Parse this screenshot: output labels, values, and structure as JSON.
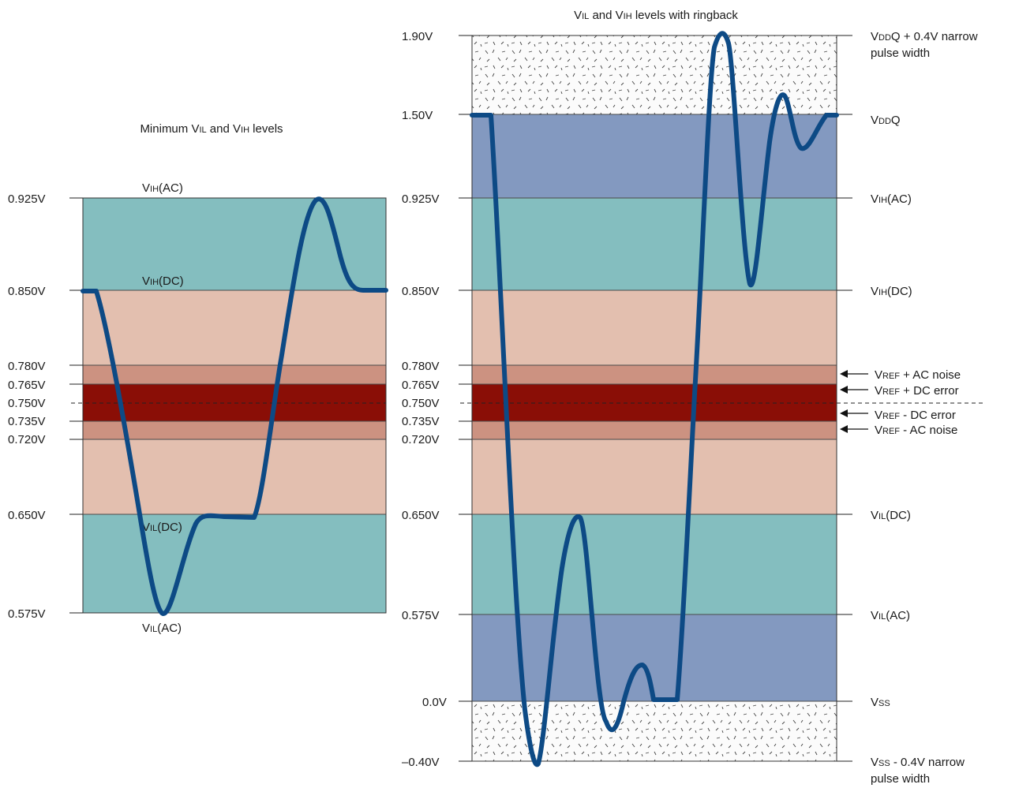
{
  "colors": {
    "teal": "#84bebf",
    "blue": "#8399c0",
    "peach": "#e3bfaf",
    "salmon": "#cc9281",
    "darkred": "#8a0e06",
    "waveform": "#0d4a85",
    "outer_fill": "#f7f7f7"
  },
  "left_panel": {
    "title": {
      "a": "Minimum V",
      "a_sub": "IL",
      "b": " and V",
      "b_sub": "IH",
      "c": " levels"
    },
    "axis_labels": {
      "v0925": "0.925V",
      "v0850": "0.850V",
      "v0780": "0.780V",
      "v0765": "0.765V",
      "v0750": "0.750V",
      "v0735": "0.735V",
      "v0720": "0.720V",
      "v0650": "0.650V",
      "v0575": "0.575V"
    },
    "level_labels": {
      "vih_ac": {
        "main": "V",
        "sub": "IH",
        "paren": "(AC)"
      },
      "vih_dc": {
        "main": "V",
        "sub": "IH",
        "paren": "(DC)"
      },
      "vil_dc": {
        "main": "V",
        "sub": "IL",
        "paren": "(DC)"
      },
      "vil_ac": {
        "main": "V",
        "sub": "IL",
        "paren": "(AC)"
      }
    }
  },
  "right_panel": {
    "title": {
      "a": "V",
      "a_sub": "IL",
      "b": " and V",
      "b_sub": "IH",
      "c": " levels with ringback"
    },
    "axis_labels": {
      "v190": "1.90V",
      "v150": "1.50V",
      "v0925": "0.925V",
      "v0850": "0.850V",
      "v0780": "0.780V",
      "v0765": "0.765V",
      "v0750": "0.750V",
      "v0735": "0.735V",
      "v0720": "0.720V",
      "v0650": "0.650V",
      "v0575": "0.575V",
      "v000": "0.0V",
      "vneg040": "–0.40V"
    },
    "right_labels": {
      "vddq_narrow": {
        "main": "V",
        "sub": "DD",
        "rest": "Q + 0.4V narrow",
        "line2": "pulse width"
      },
      "vddq": {
        "main": "V",
        "sub": "DD",
        "rest": "Q"
      },
      "vih_ac": {
        "main": "V",
        "sub": "IH",
        "paren": "(AC)"
      },
      "vih_dc": {
        "main": "V",
        "sub": "IH",
        "paren": "(DC)"
      },
      "vref_ac_plus": {
        "main": "V",
        "sub": "REF",
        "rest": " + AC noise"
      },
      "vref_dc_plus": {
        "main": "V",
        "sub": "REF",
        "rest": " + DC error"
      },
      "vref_dc_minus": {
        "main": "V",
        "sub": "REF",
        "rest": " - DC error"
      },
      "vref_ac_minus": {
        "main": "V",
        "sub": "REF",
        "rest": " - AC noise"
      },
      "vil_dc": {
        "main": "V",
        "sub": "IL",
        "paren": "(DC)"
      },
      "vil_ac": {
        "main": "V",
        "sub": "IL",
        "paren": "(AC)"
      },
      "vss": {
        "main": "V",
        "sub": "SS",
        "rest": ""
      },
      "vss_narrow": {
        "main": "V",
        "sub": "SS",
        "rest": " - 0.4V narrow",
        "line2": "pulse width"
      }
    }
  }
}
